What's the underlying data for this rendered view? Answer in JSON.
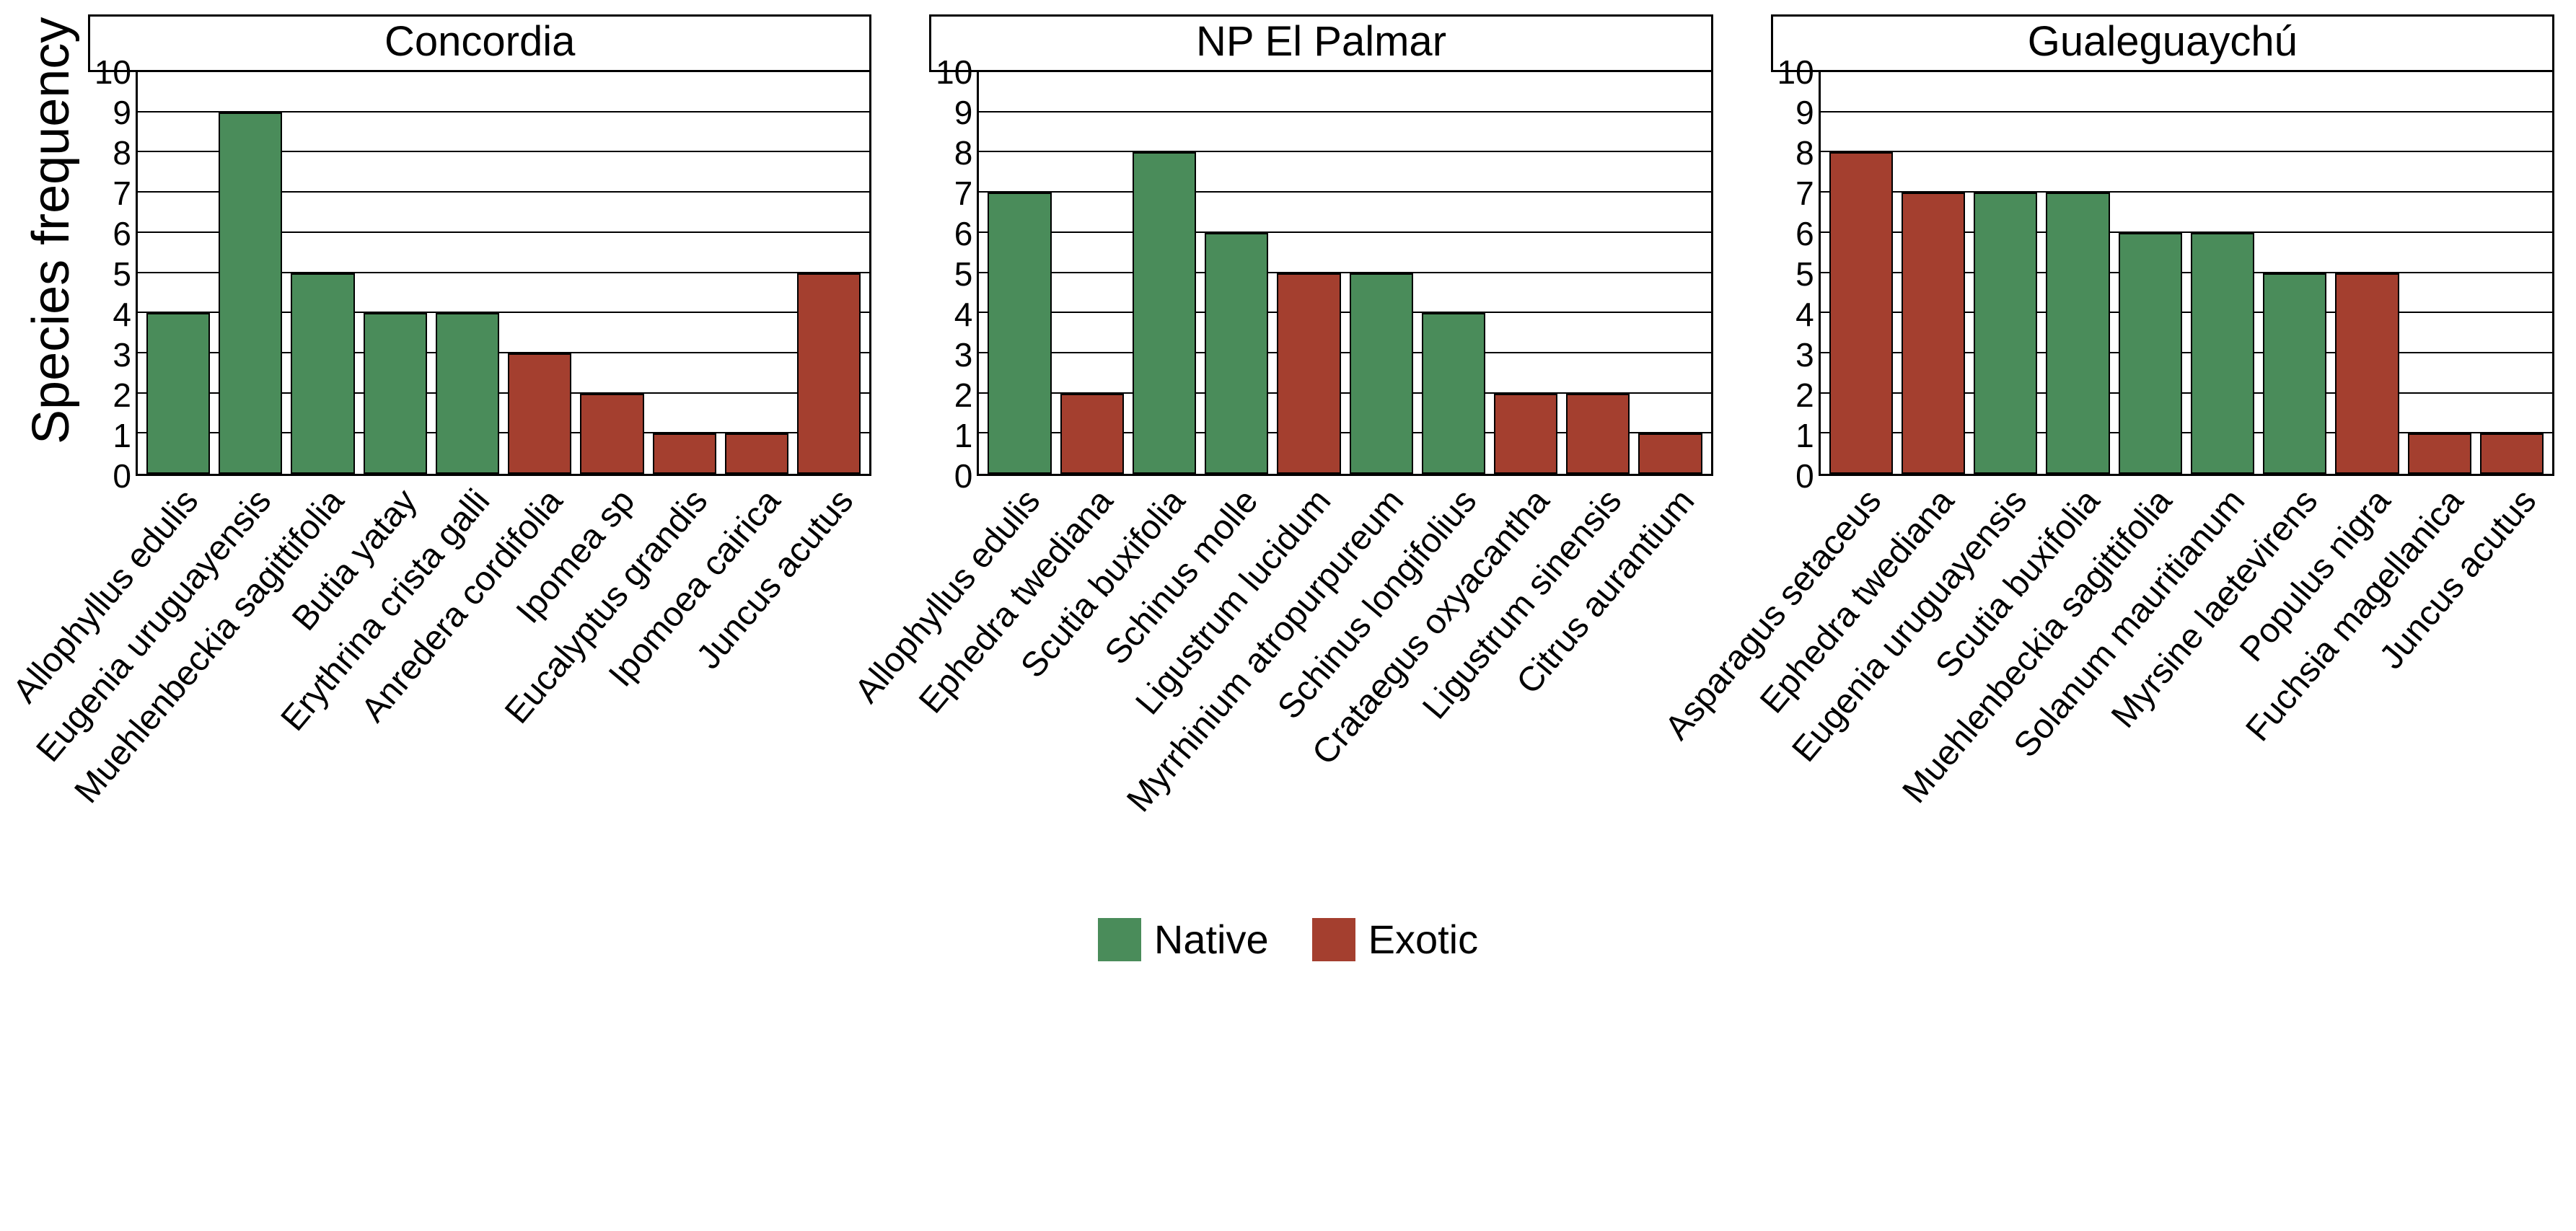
{
  "figure": {
    "y_axis_title": "Species frequency",
    "ylim": [
      0,
      10
    ],
    "ytick_step": 1,
    "yticks": [
      0,
      1,
      2,
      3,
      4,
      5,
      6,
      7,
      8,
      9,
      10
    ],
    "background_color": "#ffffff",
    "grid_color": "#000000",
    "border_color": "#000000",
    "facet_title_fontsize": 58,
    "axis_title_fontsize": 72,
    "tick_fontsize": 46,
    "xtick_fontsize": 48,
    "xtick_angle_deg": -50,
    "bar_border_color": "#000000",
    "bar_border_width": 2,
    "colors": {
      "Native": "#4a8c5a",
      "Exotic": "#a43f2f"
    },
    "legend": [
      {
        "label": "Native",
        "color": "#4a8c5a"
      },
      {
        "label": "Exotic",
        "color": "#a43f2f"
      }
    ],
    "panels": [
      {
        "title": "Concordia",
        "bars": [
          {
            "label": "Allophyllus edulis",
            "value": 4,
            "group": "Native"
          },
          {
            "label": "Eugenia uruguayensis",
            "value": 9,
            "group": "Native"
          },
          {
            "label": "Muehlenbeckia sagittifolia",
            "value": 5,
            "group": "Native"
          },
          {
            "label": "Butia yatay",
            "value": 4,
            "group": "Native"
          },
          {
            "label": "Erythrina crista galli",
            "value": 4,
            "group": "Native"
          },
          {
            "label": "Anredera cordifolia",
            "value": 3,
            "group": "Exotic"
          },
          {
            "label": "Ipomea sp",
            "value": 2,
            "group": "Exotic"
          },
          {
            "label": "Eucalyptus grandis",
            "value": 1,
            "group": "Exotic"
          },
          {
            "label": "Ipomoea cairica",
            "value": 1,
            "group": "Exotic"
          },
          {
            "label": "Juncus acutus",
            "value": 5,
            "group": "Exotic"
          }
        ]
      },
      {
        "title": "NP El Palmar",
        "bars": [
          {
            "label": "Allophyllus edulis",
            "value": 7,
            "group": "Native"
          },
          {
            "label": "Ephedra twediana",
            "value": 2,
            "group": "Exotic"
          },
          {
            "label": "Scutia buxifolia",
            "value": 8,
            "group": "Native"
          },
          {
            "label": "Schinus molle",
            "value": 6,
            "group": "Native"
          },
          {
            "label": "Ligustrum lucidum",
            "value": 5,
            "group": "Exotic"
          },
          {
            "label": "Myrrhinium atropurpureum",
            "value": 5,
            "group": "Native"
          },
          {
            "label": "Schinus longifolius",
            "value": 4,
            "group": "Native"
          },
          {
            "label": "Crataegus oxyacantha",
            "value": 2,
            "group": "Exotic"
          },
          {
            "label": "Ligustrum sinensis",
            "value": 2,
            "group": "Exotic"
          },
          {
            "label": "Citrus aurantium",
            "value": 1,
            "group": "Exotic"
          }
        ]
      },
      {
        "title": "Gualeguaychú",
        "bars": [
          {
            "label": "Asparagus setaceus",
            "value": 8,
            "group": "Exotic"
          },
          {
            "label": "Ephedra twediana",
            "value": 7,
            "group": "Exotic"
          },
          {
            "label": "Eugenia uruguayensis",
            "value": 7,
            "group": "Native"
          },
          {
            "label": "Scutia buxifolia",
            "value": 7,
            "group": "Native"
          },
          {
            "label": "Muehlenbeckia sagittifolia",
            "value": 6,
            "group": "Native"
          },
          {
            "label": "Solanum mauritianum",
            "value": 6,
            "group": "Native"
          },
          {
            "label": "Myrsine laetevirens",
            "value": 5,
            "group": "Native"
          },
          {
            "label": "Populus nigra",
            "value": 5,
            "group": "Exotic"
          },
          {
            "label": "Fuchsia magellanica",
            "value": 1,
            "group": "Exotic"
          },
          {
            "label": "Juncus acutus",
            "value": 1,
            "group": "Exotic"
          }
        ]
      }
    ]
  }
}
